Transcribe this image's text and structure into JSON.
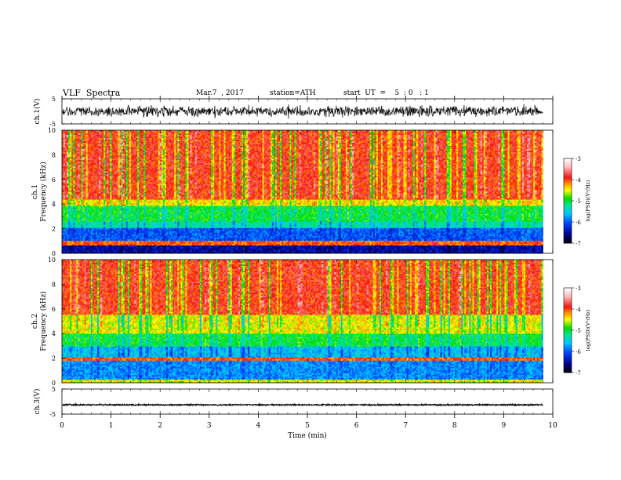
{
  "header": {
    "title": "VLF  Spectra",
    "date": "Mar.7  , 2017",
    "station": "station=ATH",
    "start_ut": "start  UT  =    5  : 0   : 1"
  },
  "chart_data": [
    {
      "type": "line",
      "panel": "ch1-waveform",
      "ylabel": "ch.1(V)",
      "ylim": [
        -5,
        5
      ],
      "yticks": [
        "5",
        "-5"
      ],
      "xlim": [
        0,
        10
      ],
      "data_end_min": 9.8,
      "series": [
        {
          "baseline_v": 0.0,
          "noise_amplitude_v": 2.5
        }
      ]
    },
    {
      "type": "heatmap",
      "panel": "ch1-spectrogram",
      "ylabel": "ch.1",
      "ylabel2": "Frequency  (kHz)",
      "ylim": [
        0,
        10
      ],
      "yticks": [
        "0",
        "2",
        "4",
        "6",
        "8",
        "10"
      ],
      "xlim": [
        0,
        10
      ],
      "data_end_min": 9.8,
      "bands_khz": [
        {
          "from": 0.0,
          "to": 0.6,
          "log_psd": -6.5
        },
        {
          "from": 0.6,
          "to": 1.0,
          "log_psd": -4.0
        },
        {
          "from": 1.0,
          "to": 2.0,
          "log_psd": -6.0
        },
        {
          "from": 2.0,
          "to": 2.6,
          "log_psd": -5.3
        },
        {
          "from": 2.6,
          "to": 3.8,
          "log_psd": -5.0
        },
        {
          "from": 3.8,
          "to": 4.3,
          "log_psd": -4.4
        },
        {
          "from": 4.3,
          "to": 10.0,
          "log_psd": -3.9
        }
      ],
      "colorbar": {
        "label": "log(PSD)(V²/Hz)",
        "range": [
          -7,
          -3
        ],
        "ticks": [
          "-3",
          "-4",
          "-5",
          "-6",
          "-7"
        ]
      }
    },
    {
      "type": "heatmap",
      "panel": "ch2-spectrogram",
      "ylabel": "ch.2",
      "ylabel2": "Frequency  (kHz)",
      "ylim": [
        0,
        10
      ],
      "yticks": [
        "0",
        "2",
        "4",
        "6",
        "8",
        "10"
      ],
      "xlim": [
        0,
        10
      ],
      "data_end_min": 9.8,
      "bands_khz": [
        {
          "from": 0.0,
          "to": 0.3,
          "log_psd": -4.5
        },
        {
          "from": 0.3,
          "to": 1.8,
          "log_psd": -5.8
        },
        {
          "from": 1.8,
          "to": 2.1,
          "log_psd": -4.0
        },
        {
          "from": 2.1,
          "to": 3.0,
          "log_psd": -5.6
        },
        {
          "from": 3.0,
          "to": 4.0,
          "log_psd": -5.0
        },
        {
          "from": 4.0,
          "to": 5.5,
          "log_psd": -4.5
        },
        {
          "from": 5.5,
          "to": 10.0,
          "log_psd": -3.9
        }
      ],
      "colorbar": {
        "label": "log(PSD)(V²/Hz)",
        "range": [
          -7,
          -3
        ],
        "ticks": [
          "-3",
          "-4",
          "-5",
          "-6",
          "-7"
        ]
      }
    },
    {
      "type": "line",
      "panel": "ch3-waveform",
      "ylabel": "ch.3(V)",
      "ylim": [
        -5,
        5
      ],
      "yticks": [
        "5",
        "-5"
      ],
      "xlim": [
        0,
        10
      ],
      "data_end_min": 9.8,
      "xlabel": "Time  (min)",
      "xticks": [
        "0",
        "1",
        "2",
        "3",
        "4",
        "5",
        "6",
        "7",
        "8",
        "9",
        "10"
      ],
      "series": [
        {
          "baseline_v": -1.3,
          "noise_amplitude_v": 0.3
        }
      ]
    }
  ]
}
